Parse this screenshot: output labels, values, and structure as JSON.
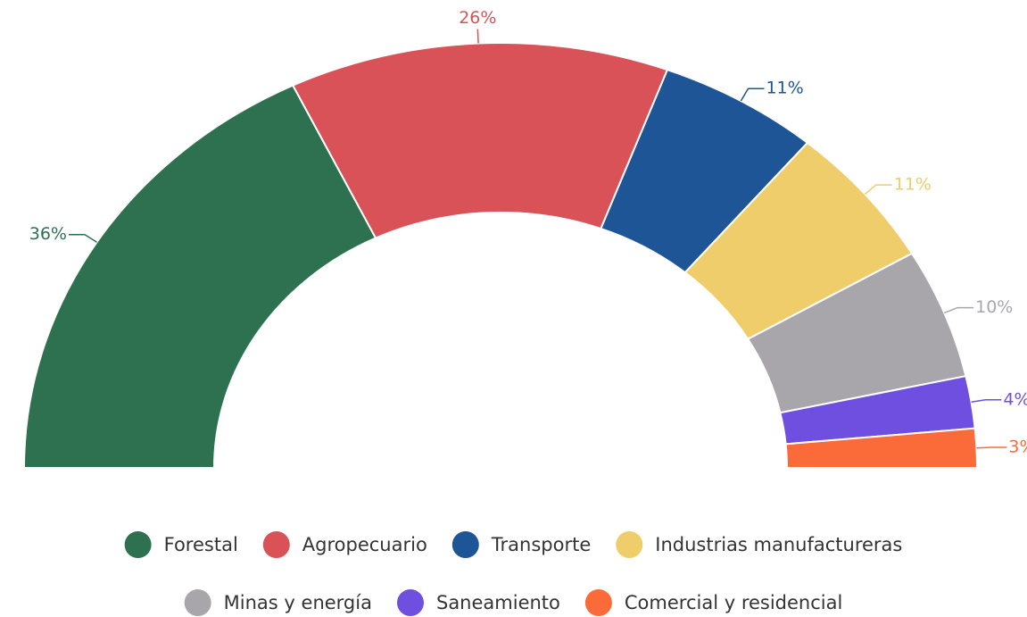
{
  "chart_data": {
    "type": "semi-donut",
    "categories": [
      "Forestal",
      "Agropecuario",
      "Transporte",
      "Industrias manufactureras",
      "Minas y energía",
      "Saneamiento",
      "Comercial y residencial"
    ],
    "values": [
      36,
      26,
      11,
      11,
      10,
      4,
      3
    ],
    "value_labels": [
      "36%",
      "26%",
      "11%",
      "11%",
      "10%",
      "4%",
      "3%"
    ],
    "colors": [
      "#2e7150",
      "#d95258",
      "#1d5596",
      "#eecd6a",
      "#a8a6ab",
      "#6e4fe0",
      "#fb6b3a"
    ],
    "legend": "bottom"
  }
}
